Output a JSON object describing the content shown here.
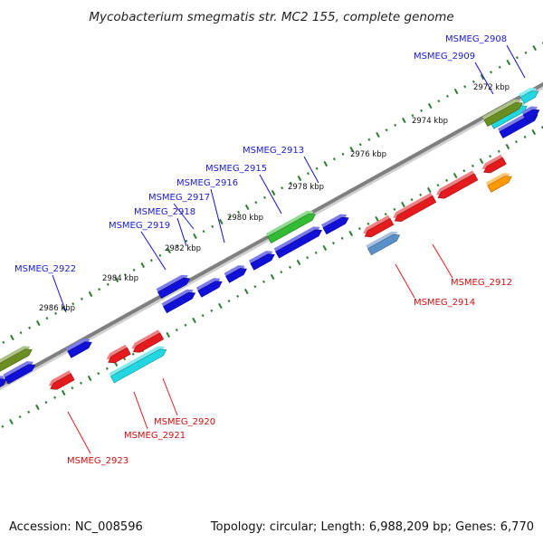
{
  "title": "Mycobacterium smegmatis str. MC2 155, complete genome",
  "footer": {
    "accession": "Accession: NC_008596",
    "summary": "Topology: circular; Length: 6,988,209 bp; Genes: 6,770"
  },
  "colors": {
    "backbone": "#7f7f7f",
    "tick": "#2e7d2e",
    "blue": "#1010d8",
    "red": "#e41a1c",
    "cyan": "#22d8e0",
    "green": "#33bb33",
    "olive": "#6b8e23",
    "orange": "#ff9900",
    "steel": "#5a8fc8"
  },
  "ticks": [
    "2972 kbp",
    "2974 kbp",
    "2976 kbp",
    "2978 kbp",
    "2980 kbp",
    "2982 kbp",
    "2984 kbp",
    "2986 kbp"
  ],
  "forward_labels": [
    "MSMEG_2908",
    "MSMEG_2909",
    "MSMEG_2913",
    "MSMEG_2915",
    "MSMEG_2916",
    "MSMEG_2917",
    "MSMEG_2918",
    "MSMEG_2919",
    "MSMEG_2922"
  ],
  "reverse_labels": [
    "MSMEG_2912",
    "MSMEG_2914",
    "MSMEG_2920",
    "MSMEG_2921",
    "MSMEG_2923"
  ]
}
